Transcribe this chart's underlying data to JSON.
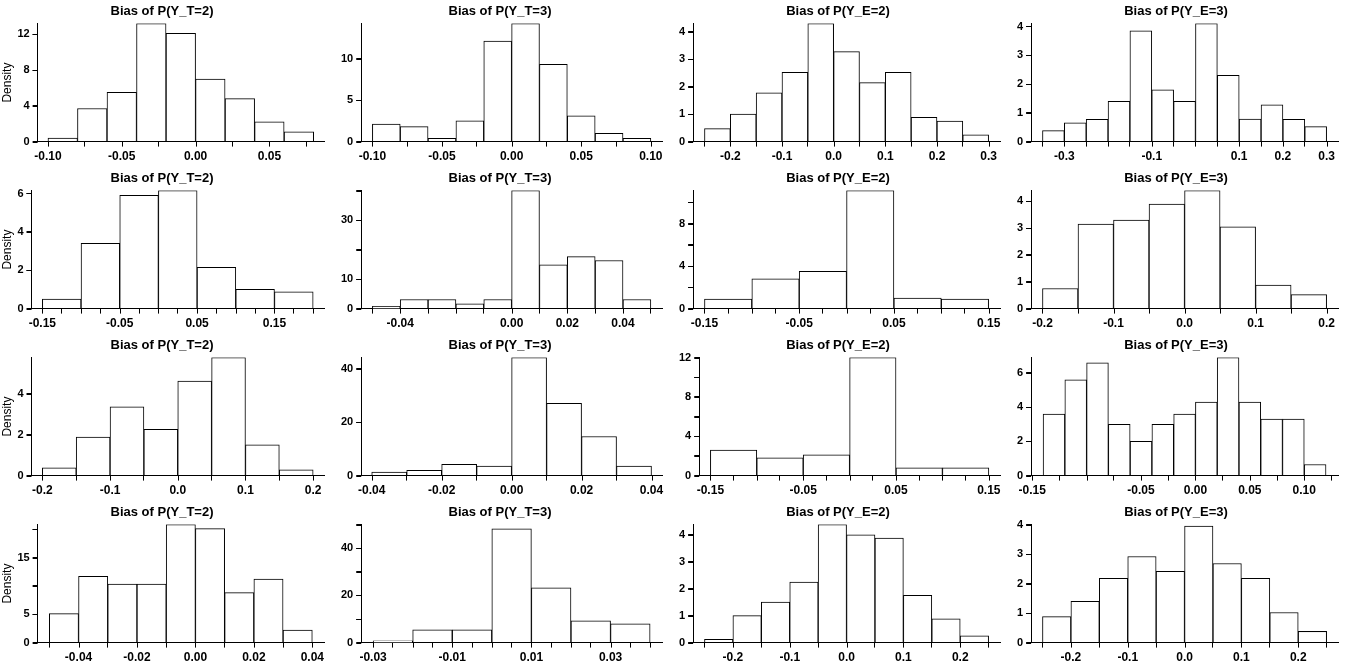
{
  "chart_data": [
    {
      "type": "histogram",
      "title": "Bias of P(Y_T=2)",
      "ylabel": "Density",
      "color": "#ffffff",
      "bins": [
        -0.1,
        -0.08,
        -0.06,
        -0.04,
        -0.02,
        0,
        0.02,
        0.04,
        0.06,
        0.08
      ],
      "values": [
        0.4,
        3.7,
        5.5,
        13.2,
        12.1,
        7.0,
        4.8,
        2.2,
        1.1
      ],
      "xlim": [
        -0.107,
        0.087
      ],
      "ylim": [
        0,
        13.2
      ],
      "xticks": [
        {
          "value": -0.1,
          "label": "-0.10"
        },
        {
          "value": -0.05,
          "label": "-0.05"
        },
        {
          "value": 0,
          "label": "0.00"
        },
        {
          "value": 0.05,
          "label": "0.05"
        }
      ],
      "yticks": [
        0,
        4,
        8,
        12
      ]
    },
    {
      "type": "histogram",
      "title": "Bias of P(Y_T=3)",
      "color": "#ffffff",
      "bins": [
        -0.1,
        -0.08,
        -0.06,
        -0.04,
        -0.02,
        0,
        0.02,
        0.04,
        0.06,
        0.08,
        0.1
      ],
      "values": [
        2.1,
        1.8,
        0.4,
        2.5,
        12.1,
        14.2,
        9.3,
        3.1,
        1.0,
        0.4
      ],
      "xlim": [
        -0.108,
        0.108
      ],
      "ylim": [
        0,
        14.2
      ],
      "xticks": [
        {
          "value": -0.1,
          "label": "-0.10"
        },
        {
          "value": -0.05,
          "label": "-0.05"
        },
        {
          "value": 0,
          "label": "0.00"
        },
        {
          "value": 0.05,
          "label": "0.05"
        },
        {
          "value": 0.1,
          "label": "0.10"
        }
      ],
      "yticks": [
        0,
        5,
        10
      ]
    },
    {
      "type": "histogram",
      "title": "Bias of P(Y_E=2)",
      "color": "#ffffff",
      "bins": [
        -0.25,
        -0.2,
        -0.15,
        -0.1,
        -0.05,
        0,
        0.05,
        0.1,
        0.15,
        0.2,
        0.25,
        0.3
      ],
      "values": [
        0.47,
        1.0,
        1.78,
        2.52,
        4.3,
        3.28,
        2.15,
        2.52,
        0.88,
        0.75,
        0.25
      ],
      "xlim": [
        -0.272,
        0.322
      ],
      "ylim": [
        0,
        4.3
      ],
      "xticks": [
        {
          "value": -0.2,
          "label": "-0.2"
        },
        {
          "value": -0.1,
          "label": "-0.1"
        },
        {
          "value": 0,
          "label": "0.0"
        },
        {
          "value": 0.1,
          "label": "0.1"
        },
        {
          "value": 0.2,
          "label": "0.2"
        },
        {
          "value": 0.3,
          "label": "0.3"
        }
      ],
      "yticks": [
        0,
        1,
        2,
        3,
        4
      ]
    },
    {
      "type": "histogram",
      "title": "Bias of P(Y_E=3)",
      "color": "#ffffff",
      "bins": [
        -0.35,
        -0.3,
        -0.25,
        -0.2,
        -0.15,
        -0.1,
        -0.05,
        0,
        0.05,
        0.1,
        0.15,
        0.2,
        0.25,
        0.3
      ],
      "values": [
        0.38,
        0.65,
        0.77,
        1.4,
        3.85,
        1.8,
        1.4,
        4.1,
        2.3,
        0.78,
        1.28,
        0.77,
        0.52
      ],
      "xlim": [
        -0.376,
        0.326
      ],
      "ylim": [
        0,
        4.1
      ],
      "xticks": [
        {
          "value": -0.3,
          "label": "-0.3"
        },
        {
          "value": -0.2,
          "label": null
        },
        {
          "value": -0.1,
          "label": "-0.1"
        },
        {
          "value": 0,
          "label": null
        },
        {
          "value": 0.1,
          "label": "0.1"
        },
        {
          "value": 0.2,
          "label": "0.2"
        },
        {
          "value": 0.3,
          "label": "0.3"
        }
      ],
      "yticks": [
        0,
        1,
        2,
        3,
        4
      ]
    },
    {
      "type": "histogram",
      "title": "Bias of P(Y_T=2)",
      "ylabel": "Density",
      "color": "#ffffff",
      "bins": [
        -0.15,
        -0.1,
        -0.05,
        0,
        0.05,
        0.1,
        0.15,
        0.2
      ],
      "values": [
        0.5,
        3.4,
        5.9,
        6.15,
        2.15,
        1.0,
        0.88
      ],
      "xlim": [
        -0.164,
        0.214
      ],
      "ylim": [
        0,
        6.15
      ],
      "xticks": [
        {
          "value": -0.15,
          "label": "-0.15"
        },
        {
          "value": -0.1,
          "label": null
        },
        {
          "value": -0.05,
          "label": "-0.05"
        },
        {
          "value": 0,
          "label": null
        },
        {
          "value": 0.05,
          "label": "0.05"
        },
        {
          "value": 0.1,
          "label": null
        },
        {
          "value": 0.15,
          "label": "0.15"
        },
        {
          "value": 0.2,
          "label": null
        }
      ],
      "yticks": [
        0,
        2,
        4,
        6
      ]
    },
    {
      "type": "histogram",
      "title": "Bias of P(Y_T=3)",
      "color": "#ffffff",
      "bins": [
        -0.05,
        -0.04,
        -0.03,
        -0.02,
        -0.01,
        0,
        0.01,
        0.02,
        0.03,
        0.04,
        0.05
      ],
      "values": [
        0.8,
        3.1,
        3.1,
        1.6,
        3.1,
        40,
        14.8,
        17.6,
        16.3,
        3.1
      ],
      "xlim": [
        -0.054,
        0.054
      ],
      "ylim": [
        0,
        40
      ],
      "xticks": [
        {
          "value": -0.04,
          "label": "-0.04"
        },
        {
          "value": -0.02,
          "label": null
        },
        {
          "value": 0,
          "label": "0.00"
        },
        {
          "value": 0.02,
          "label": "0.02"
        },
        {
          "value": 0.04,
          "label": "0.04"
        }
      ],
      "yticks": [
        0,
        10,
        {
          "value": 20,
          "label": null
        },
        30,
        {
          "value": 40,
          "label": null
        }
      ]
    },
    {
      "type": "histogram",
      "title": "Bias of P(Y_E=2)",
      "color": "#ffffff",
      "bins": [
        -0.15,
        -0.1,
        -0.05,
        0,
        0.05,
        0.1,
        0.15
      ],
      "values": [
        0.9,
        2.8,
        3.5,
        11.1,
        1.0,
        0.9
      ],
      "xlim": [
        -0.162,
        0.162
      ],
      "ylim": [
        0,
        11.1
      ],
      "xticks": [
        {
          "value": -0.15,
          "label": "-0.15"
        },
        {
          "value": -0.1,
          "label": null
        },
        {
          "value": -0.05,
          "label": "-0.05"
        },
        {
          "value": 0,
          "label": null
        },
        {
          "value": 0.05,
          "label": "0.05"
        },
        {
          "value": 0.1,
          "label": null
        },
        {
          "value": 0.15,
          "label": "0.15"
        }
      ],
      "yticks": [
        0,
        {
          "value": 2,
          "label": null
        },
        4,
        {
          "value": 6,
          "label": null
        },
        8,
        {
          "value": 10,
          "label": null
        }
      ]
    },
    {
      "type": "histogram",
      "title": "Bias of P(Y_E=3)",
      "color": "#ffffff",
      "bins": [
        -0.2,
        -0.15,
        -0.1,
        -0.05,
        0,
        0.05,
        0.1,
        0.15,
        0.2
      ],
      "values": [
        0.75,
        3.15,
        3.3,
        3.9,
        4.4,
        3.05,
        0.88,
        0.52
      ],
      "xlim": [
        -0.216,
        0.216
      ],
      "ylim": [
        0,
        4.4
      ],
      "xticks": [
        {
          "value": -0.2,
          "label": "-0.2"
        },
        {
          "value": -0.1,
          "label": "-0.1"
        },
        {
          "value": 0,
          "label": "0.0"
        },
        {
          "value": 0.1,
          "label": "0.1"
        },
        {
          "value": 0.2,
          "label": "0.2"
        }
      ],
      "yticks": [
        0,
        1,
        2,
        3,
        4
      ]
    },
    {
      "type": "histogram",
      "title": "Bias of P(Y_T=2)",
      "ylabel": "Density",
      "color": "#ffffff",
      "bins": [
        -0.2,
        -0.15,
        -0.1,
        -0.05,
        0,
        0.05,
        0.1,
        0.15,
        0.2
      ],
      "values": [
        0.38,
        1.88,
        3.35,
        2.25,
        4.6,
        5.75,
        1.5,
        0.28
      ],
      "xlim": [
        -0.216,
        0.216
      ],
      "ylim": [
        0,
        5.75
      ],
      "xticks": [
        {
          "value": -0.2,
          "label": "-0.2"
        },
        {
          "value": -0.1,
          "label": "-0.1"
        },
        {
          "value": 0,
          "label": "0.0"
        },
        {
          "value": 0.1,
          "label": "0.1"
        },
        {
          "value": 0.2,
          "label": "0.2"
        }
      ],
      "yticks": [
        0,
        2,
        4
      ]
    },
    {
      "type": "histogram",
      "title": "Bias of P(Y_T=3)",
      "color": "#ffffff",
      "bins": [
        -0.04,
        -0.03,
        -0.02,
        -0.01,
        0,
        0.01,
        0.02,
        0.03,
        0.04
      ],
      "values": [
        1.3,
        2.0,
        4.2,
        3.6,
        44.1,
        27,
        14.6,
        3.6
      ],
      "xlim": [
        -0.043,
        0.043
      ],
      "ylim": [
        0,
        44.1
      ],
      "xticks": [
        {
          "value": -0.04,
          "label": "-0.04"
        },
        {
          "value": -0.02,
          "label": "-0.02"
        },
        {
          "value": 0,
          "label": "0.00"
        },
        {
          "value": 0.02,
          "label": "0.02"
        },
        {
          "value": 0.04,
          "label": "0.04"
        }
      ],
      "yticks": [
        0,
        20,
        40
      ]
    },
    {
      "type": "histogram",
      "title": "Bias of P(Y_E=2)",
      "color": "#ffffff",
      "bins": [
        -0.15,
        -0.1,
        -0.05,
        0,
        0.05,
        0.1,
        0.15
      ],
      "values": [
        2.6,
        1.8,
        2.1,
        12,
        0.8,
        0.8
      ],
      "xlim": [
        -0.162,
        0.162
      ],
      "ylim": [
        0,
        12
      ],
      "xticks": [
        {
          "value": -0.15,
          "label": "-0.15"
        },
        {
          "value": -0.1,
          "label": null
        },
        {
          "value": -0.05,
          "label": "-0.05"
        },
        {
          "value": 0,
          "label": null
        },
        {
          "value": 0.05,
          "label": "0.05"
        },
        {
          "value": 0.1,
          "label": null
        },
        {
          "value": 0.15,
          "label": "0.15"
        }
      ],
      "yticks": [
        0,
        {
          "value": 2,
          "label": null
        },
        4,
        {
          "value": 6,
          "label": null
        },
        8,
        {
          "value": 10,
          "label": null
        },
        12
      ]
    },
    {
      "type": "histogram",
      "title": "Bias of P(Y_E=3)",
      "color": "#ffffff",
      "bins": [
        -0.14,
        -0.12,
        -0.1,
        -0.08,
        -0.06,
        -0.04,
        -0.02,
        0,
        0.02,
        0.04,
        0.06,
        0.08,
        0.1,
        0.12
      ],
      "values": [
        3.6,
        5.6,
        6.6,
        3.0,
        2.0,
        3.0,
        3.6,
        4.3,
        6.9,
        4.3,
        3.3,
        3.3,
        0.65
      ],
      "xlim": [
        -0.151,
        0.131
      ],
      "ylim": [
        0,
        6.9
      ],
      "xticks": [
        {
          "value": -0.15,
          "label": "-0.15"
        },
        {
          "value": -0.1,
          "label": null
        },
        {
          "value": -0.05,
          "label": "-0.05"
        },
        {
          "value": 0,
          "label": "0.00"
        },
        {
          "value": 0.05,
          "label": "0.05"
        },
        {
          "value": 0.1,
          "label": "0.10"
        }
      ],
      "yticks": [
        0,
        2,
        4,
        6
      ]
    },
    {
      "type": "histogram",
      "title": "Bias of P(Y_T=2)",
      "ylabel": "Density",
      "color": "#ffffff",
      "bins": [
        -0.05,
        -0.04,
        -0.03,
        -0.02,
        -0.01,
        0,
        0.01,
        0.02,
        0.03,
        0.04
      ],
      "values": [
        5.1,
        11.7,
        10.3,
        10.3,
        20.8,
        20.1,
        8.8,
        11.2,
        2.2
      ],
      "xlim": [
        -0.054,
        0.044
      ],
      "ylim": [
        0,
        20.8
      ],
      "xticks": [
        {
          "value": -0.04,
          "label": "-0.04"
        },
        {
          "value": -0.02,
          "label": "-0.02"
        },
        {
          "value": 0,
          "label": "0.00"
        },
        {
          "value": 0.02,
          "label": "0.02"
        },
        {
          "value": 0.04,
          "label": "0.04"
        }
      ],
      "yticks": [
        0,
        5,
        {
          "value": 10,
          "label": null
        },
        15,
        {
          "value": 20,
          "label": null
        }
      ]
    },
    {
      "type": "histogram",
      "title": "Bias of P(Y_T=3)",
      "color": "#ffffff",
      "bins": [
        -0.03,
        -0.02,
        -0.01,
        0,
        0.01,
        0.02,
        0.03,
        0.04
      ],
      "values": [
        0.8,
        5.4,
        5.4,
        48.2,
        23.2,
        9.2,
        8.0
      ],
      "xlim": [
        -0.033,
        0.043
      ],
      "ylim": [
        0,
        50
      ],
      "xticks": [
        {
          "value": -0.03,
          "label": "-0.03"
        },
        {
          "value": -0.02,
          "label": null
        },
        {
          "value": -0.01,
          "label": "-0.01"
        },
        {
          "value": 0,
          "label": null
        },
        {
          "value": 0.01,
          "label": "0.01"
        },
        {
          "value": 0.02,
          "label": null
        },
        {
          "value": 0.03,
          "label": "0.03"
        },
        {
          "value": 0.04,
          "label": null
        }
      ],
      "yticks": [
        0,
        {
          "value": 10,
          "label": null
        },
        20,
        {
          "value": 30,
          "label": null
        },
        40,
        {
          "value": 50,
          "label": null
        }
      ]
    },
    {
      "type": "histogram",
      "title": "Bias of P(Y_E=2)",
      "color": "#ffffff",
      "bins": [
        -0.25,
        -0.2,
        -0.15,
        -0.1,
        -0.05,
        0,
        0.05,
        0.1,
        0.15,
        0.2,
        0.25
      ],
      "values": [
        0.12,
        1.0,
        1.5,
        2.25,
        4.38,
        4.0,
        3.88,
        1.75,
        0.88,
        0.25
      ],
      "xlim": [
        -0.27,
        0.27
      ],
      "ylim": [
        0,
        4.38
      ],
      "xticks": [
        {
          "value": -0.2,
          "label": "-0.2"
        },
        {
          "value": -0.1,
          "label": "-0.1"
        },
        {
          "value": 0,
          "label": "0.0"
        },
        {
          "value": 0.1,
          "label": "0.1"
        },
        {
          "value": 0.2,
          "label": "0.2"
        }
      ],
      "yticks": [
        0,
        1,
        2,
        3,
        4
      ]
    },
    {
      "type": "histogram",
      "title": "Bias of P(Y_E=3)",
      "color": "#ffffff",
      "bins": [
        -0.25,
        -0.2,
        -0.15,
        -0.1,
        -0.05,
        0,
        0.05,
        0.1,
        0.15,
        0.2,
        0.25
      ],
      "values": [
        0.88,
        1.4,
        2.18,
        2.92,
        2.42,
        3.95,
        2.68,
        2.18,
        1.02,
        0.38
      ],
      "xlim": [
        -0.27,
        0.27
      ],
      "ylim": [
        0,
        4
      ],
      "xticks": [
        {
          "value": -0.2,
          "label": "-0.2"
        },
        {
          "value": -0.1,
          "label": "-0.1"
        },
        {
          "value": 0,
          "label": "0.0"
        },
        {
          "value": 0.1,
          "label": "0.1"
        },
        {
          "value": 0.2,
          "label": "0.2"
        }
      ],
      "yticks": [
        0,
        1,
        2,
        3,
        4
      ]
    }
  ]
}
